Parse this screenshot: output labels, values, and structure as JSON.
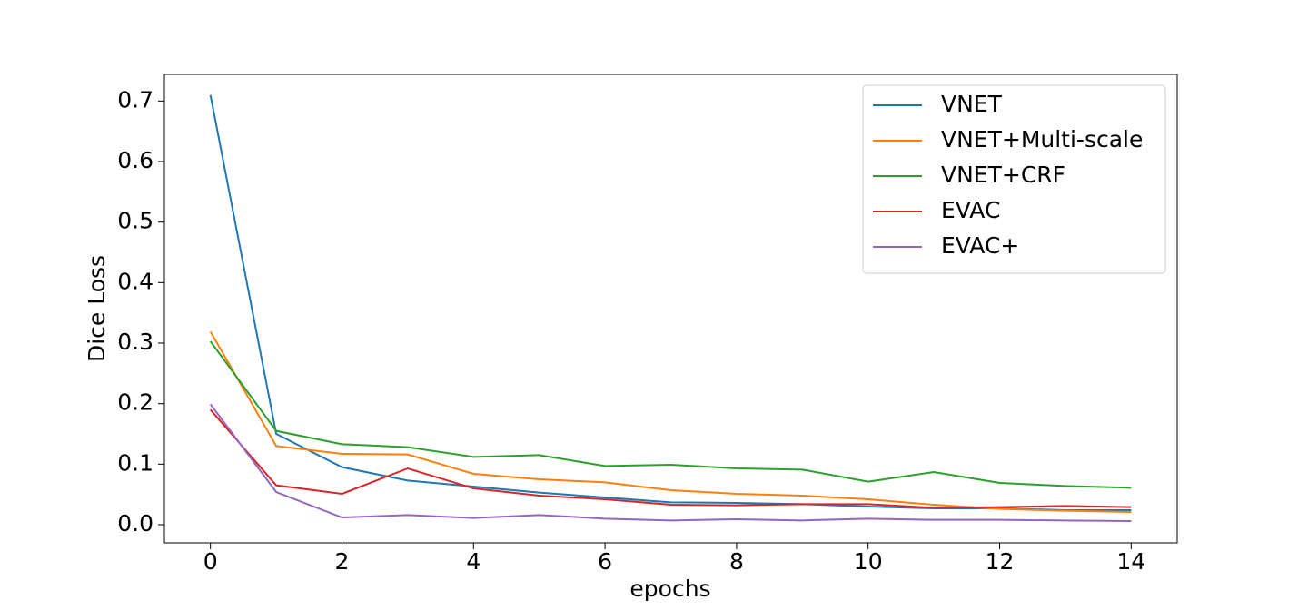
{
  "chart_data": {
    "type": "line",
    "x_label": "epochs",
    "y_label": "Dice Loss",
    "x": [
      0,
      1,
      2,
      3,
      4,
      5,
      6,
      7,
      8,
      9,
      10,
      11,
      12,
      13,
      14
    ],
    "series": [
      {
        "name": "VNET",
        "color": "#1f77b4",
        "values": [
          0.71,
          0.15,
          0.095,
          0.073,
          0.063,
          0.053,
          0.045,
          0.037,
          0.036,
          0.034,
          0.03,
          0.027,
          0.027,
          0.024,
          0.024
        ]
      },
      {
        "name": "VNET+Multi-scale",
        "color": "#ff7f0e",
        "values": [
          0.319,
          0.13,
          0.117,
          0.116,
          0.084,
          0.075,
          0.07,
          0.057,
          0.051,
          0.048,
          0.042,
          0.033,
          0.026,
          0.023,
          0.021
        ]
      },
      {
        "name": "VNET+CRF",
        "color": "#2ca02c",
        "values": [
          0.303,
          0.155,
          0.133,
          0.128,
          0.112,
          0.115,
          0.097,
          0.099,
          0.093,
          0.091,
          0.071,
          0.087,
          0.069,
          0.064,
          0.061
        ]
      },
      {
        "name": "EVAC",
        "color": "#d62728",
        "values": [
          0.19,
          0.065,
          0.051,
          0.093,
          0.06,
          0.048,
          0.042,
          0.033,
          0.032,
          0.034,
          0.034,
          0.028,
          0.029,
          0.031,
          0.029
        ]
      },
      {
        "name": "EVAC+",
        "color": "#9467bd",
        "values": [
          0.199,
          0.054,
          0.012,
          0.016,
          0.011,
          0.016,
          0.01,
          0.007,
          0.009,
          0.007,
          0.01,
          0.008,
          0.008,
          0.007,
          0.006
        ]
      }
    ],
    "xlim": [
      -0.7,
      14.7
    ],
    "ylim": [
      -0.03,
      0.744
    ],
    "xticks": [
      0,
      2,
      4,
      6,
      8,
      10,
      12,
      14
    ],
    "yticks": [
      {
        "value": 0,
        "label": "0.0"
      },
      0.1,
      0.2,
      0.3,
      0.4,
      0.5,
      0.6,
      0.7
    ],
    "legend": "upper-right",
    "grid": false
  }
}
